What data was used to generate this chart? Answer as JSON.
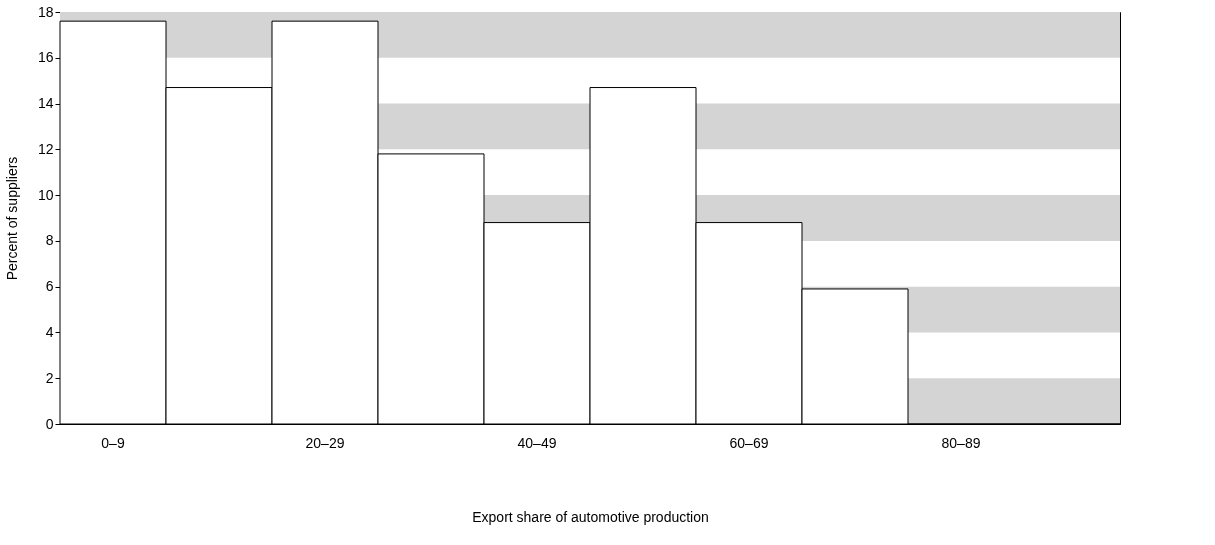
{
  "chart_data": {
    "type": "bar",
    "xlabel": "Export share of automotive production",
    "ylabel": "Percent of suppliers",
    "categories": [
      "0–9",
      null,
      "20–29",
      null,
      "40–49",
      null,
      "60–69",
      null,
      "80–89",
      null
    ],
    "series": [
      {
        "color": "#ffffff",
        "values": [
          17.6,
          14.7,
          17.6,
          11.8,
          8.8,
          14.7,
          8.8,
          5.9,
          0,
          0
        ]
      }
    ],
    "ylim": [
      0,
      18
    ],
    "yticks": [
      0,
      2,
      4,
      6,
      8,
      10,
      12,
      14,
      16,
      18
    ],
    "bands": [
      {
        "axis": "y",
        "from": 0,
        "to": 2,
        "color": "#d4d4d4"
      },
      {
        "axis": "y",
        "from": 4,
        "to": 6,
        "color": "#d4d4d4"
      },
      {
        "axis": "y",
        "from": 8,
        "to": 10,
        "color": "#d4d4d4"
      },
      {
        "axis": "y",
        "from": 12,
        "to": 14,
        "color": "#d4d4d4"
      },
      {
        "axis": "y",
        "from": 16,
        "to": 18,
        "color": "#d4d4d4"
      }
    ],
    "grid": false
  }
}
